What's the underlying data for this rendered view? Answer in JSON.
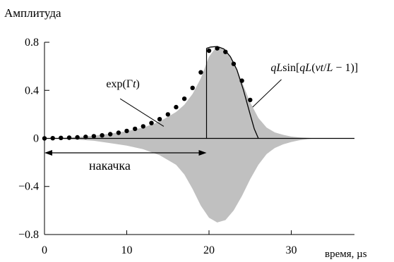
{
  "chart_data": {
    "type": "line",
    "ylabel": "Амплитуда",
    "xlabel": "время, µs",
    "xlim": [
      0,
      37
    ],
    "ylim": [
      -0.8,
      0.8
    ],
    "x_ticks": [
      0,
      10,
      20,
      30
    ],
    "x_tick_labels": [
      "0",
      "10",
      "20",
      "30"
    ],
    "y_ticks": [
      0.8,
      0.4,
      0,
      -0.4,
      -0.8
    ],
    "y_tick_labels": [
      "0.8",
      "0.4",
      "0",
      "−0.4",
      "−0.8"
    ],
    "grid": false,
    "legend": "none",
    "colors": {
      "envelope": "#c0c0c0",
      "line": "#000000",
      "axes": "#000000"
    },
    "series": [
      {
        "kind": "area",
        "upper": {
          "x": [
            0,
            2,
            4,
            6,
            8,
            10,
            12,
            14,
            16,
            17,
            18,
            19,
            20,
            21,
            22,
            23,
            24,
            25,
            26,
            27,
            28,
            29,
            30,
            31,
            32,
            33
          ],
          "y": [
            0,
            0.005,
            0.012,
            0.022,
            0.04,
            0.06,
            0.09,
            0.14,
            0.22,
            0.28,
            0.37,
            0.5,
            0.68,
            0.77,
            0.74,
            0.64,
            0.47,
            0.3,
            0.17,
            0.09,
            0.05,
            0.03,
            0.015,
            0.008,
            0.004,
            0
          ]
        },
        "lower": {
          "x": [
            0,
            2,
            4,
            6,
            8,
            10,
            12,
            14,
            16,
            17,
            18,
            19,
            20,
            21,
            22,
            23,
            24,
            25,
            26,
            27,
            28,
            29,
            30,
            31,
            32,
            33
          ],
          "y": [
            0,
            -0.005,
            -0.01,
            -0.02,
            -0.04,
            -0.06,
            -0.09,
            -0.14,
            -0.22,
            -0.3,
            -0.42,
            -0.56,
            -0.66,
            -0.7,
            -0.68,
            -0.6,
            -0.48,
            -0.34,
            -0.22,
            -0.13,
            -0.08,
            -0.05,
            -0.03,
            -0.015,
            -0.006,
            0
          ]
        }
      },
      {
        "kind": "scatter",
        "x": [
          0,
          1,
          2,
          3,
          4,
          5,
          6,
          7,
          8,
          9,
          10,
          11,
          12,
          13,
          14,
          15,
          16,
          17,
          18,
          19,
          20,
          21,
          22,
          23,
          24,
          25
        ],
        "y": [
          0.0,
          0.002,
          0.004,
          0.006,
          0.009,
          0.013,
          0.018,
          0.025,
          0.035,
          0.047,
          0.062,
          0.08,
          0.1,
          0.128,
          0.16,
          0.2,
          0.26,
          0.33,
          0.42,
          0.55,
          0.73,
          0.75,
          0.72,
          0.62,
          0.48,
          0.32
        ]
      },
      {
        "kind": "line",
        "x": [
          19.7,
          20.2,
          21.0,
          21.8,
          22.6,
          23.4,
          24.2,
          25.0,
          25.5,
          26.0
        ],
        "y": [
          0.75,
          0.76,
          0.765,
          0.745,
          0.68,
          0.57,
          0.4,
          0.2,
          0.08,
          0.0
        ]
      }
    ],
    "annotations": {
      "pump_label": "накачка",
      "pump_arrow_x": [
        0,
        19.7
      ],
      "pump_arrow_y": -0.12,
      "vertical_line_x": 19.7,
      "vertical_line_top": 0.75,
      "exp_label_prefix": "exp(",
      "exp_label_gamma": "Γ",
      "exp_label_t": "t",
      "exp_label_suffix": ")",
      "exp_label_pos": [
        7.5,
        0.425
      ],
      "exp_pointer": [
        [
          9.2,
          0.33
        ],
        [
          14.5,
          0.1
        ]
      ],
      "sin_label_parts": [
        "qL",
        "sin[",
        "qL",
        "(",
        "vt",
        "/",
        "L",
        " − 1)]"
      ],
      "sin_label_pos": [
        27.5,
        0.56
      ],
      "sin_pointer": [
        [
          28.8,
          0.49
        ],
        [
          25.3,
          0.26
        ]
      ]
    }
  }
}
